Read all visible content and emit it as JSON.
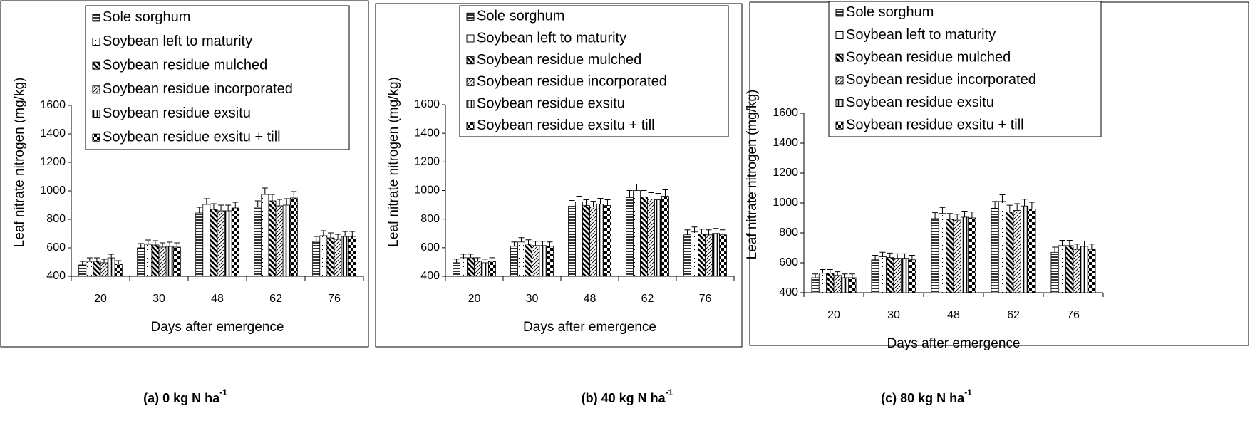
{
  "chart_data": [
    {
      "type": "bar",
      "ylabel": "Leaf nitrate nitrogen  (mg/kg)",
      "xlabel": "Days after emergence",
      "categories": [
        "20",
        "30",
        "48",
        "62",
        "76"
      ],
      "ylim": [
        400,
        1600
      ],
      "yticks": [
        400,
        600,
        800,
        1000,
        1200,
        1400,
        1600
      ],
      "series": [
        {
          "name": "Sole sorghum",
          "color": "#000000",
          "pattern": "horizontal",
          "values": [
            480,
            600,
            845,
            885,
            645
          ],
          "errors": [
            25,
            30,
            40,
            45,
            35
          ]
        },
        {
          "name": "Soybean left to maturity",
          "color": "#000000",
          "pattern": "dotted",
          "values": [
            505,
            625,
            905,
            975,
            685
          ],
          "errors": [
            25,
            30,
            40,
            45,
            35
          ]
        },
        {
          "name": "Soybean residue mulched",
          "color": "#000000",
          "pattern": "diag-thick",
          "values": [
            505,
            620,
            870,
            930,
            670
          ],
          "errors": [
            25,
            30,
            40,
            45,
            35
          ]
        },
        {
          "name": "Soybean residue incorporated",
          "color": "#000000",
          "pattern": "diag-thin",
          "values": [
            495,
            605,
            860,
            895,
            660
          ],
          "errors": [
            25,
            30,
            40,
            45,
            35
          ]
        },
        {
          "name": "Soybean residue exsitu",
          "color": "#000000",
          "pattern": "vertical",
          "values": [
            530,
            610,
            860,
            900,
            680
          ],
          "errors": [
            25,
            30,
            40,
            45,
            35
          ]
        },
        {
          "name": "Soybean residue exsitu + till",
          "color": "#000000",
          "pattern": "checker",
          "values": [
            485,
            605,
            880,
            950,
            680
          ],
          "errors": [
            25,
            30,
            40,
            45,
            35
          ]
        }
      ]
    },
    {
      "type": "bar",
      "ylabel": "Leaf nitrate nitrogen  (mg/kg)",
      "xlabel": "Days after emergence",
      "categories": [
        "20",
        "30",
        "48",
        "62",
        "76"
      ],
      "ylim": [
        400,
        1600
      ],
      "yticks": [
        400,
        600,
        800,
        1000,
        1200,
        1400,
        1600
      ],
      "series": [
        {
          "name": "Sole sorghum",
          "color": "#000000",
          "pattern": "horizontal",
          "values": [
            495,
            610,
            890,
            955,
            690
          ],
          "errors": [
            25,
            30,
            40,
            45,
            35
          ]
        },
        {
          "name": "Soybean left to maturity",
          "color": "#000000",
          "pattern": "dotted",
          "values": [
            530,
            640,
            920,
            1000,
            710
          ],
          "errors": [
            25,
            30,
            40,
            45,
            35
          ]
        },
        {
          "name": "Soybean residue mulched",
          "color": "#000000",
          "pattern": "diag-thick",
          "values": [
            530,
            625,
            895,
            955,
            695
          ],
          "errors": [
            25,
            30,
            40,
            45,
            35
          ]
        },
        {
          "name": "Soybean residue incorporated",
          "color": "#000000",
          "pattern": "diag-thin",
          "values": [
            505,
            615,
            885,
            940,
            690
          ],
          "errors": [
            25,
            30,
            40,
            45,
            35
          ]
        },
        {
          "name": "Soybean residue exsitu",
          "color": "#000000",
          "pattern": "vertical",
          "values": [
            495,
            615,
            905,
            935,
            700
          ],
          "errors": [
            25,
            30,
            40,
            45,
            35
          ]
        },
        {
          "name": "Soybean residue exsitu + till",
          "color": "#000000",
          "pattern": "checker",
          "values": [
            505,
            610,
            895,
            960,
            690
          ],
          "errors": [
            25,
            30,
            40,
            45,
            35
          ]
        }
      ]
    },
    {
      "type": "bar",
      "ylabel": "Leaf nitrate nitrogen  (mg/kg)",
      "xlabel": "Days after emergence",
      "categories": [
        "20",
        "30",
        "48",
        "62",
        "76"
      ],
      "ylim": [
        400,
        1600
      ],
      "yticks": [
        400,
        600,
        800,
        1000,
        1200,
        1400,
        1600
      ],
      "series": [
        {
          "name": "Sole sorghum",
          "color": "#000000",
          "pattern": "horizontal",
          "values": [
            500,
            620,
            895,
            965,
            670
          ],
          "errors": [
            25,
            30,
            40,
            45,
            35
          ]
        },
        {
          "name": "Soybean left to maturity",
          "color": "#000000",
          "pattern": "dotted",
          "values": [
            530,
            640,
            930,
            1010,
            715
          ],
          "errors": [
            25,
            30,
            40,
            45,
            35
          ]
        },
        {
          "name": "Soybean residue mulched",
          "color": "#000000",
          "pattern": "diag-thick",
          "values": [
            530,
            635,
            890,
            940,
            715
          ],
          "errors": [
            25,
            30,
            40,
            45,
            35
          ]
        },
        {
          "name": "Soybean residue incorporated",
          "color": "#000000",
          "pattern": "diag-thin",
          "values": [
            515,
            630,
            885,
            950,
            690
          ],
          "errors": [
            25,
            30,
            40,
            45,
            35
          ]
        },
        {
          "name": "Soybean residue exsitu",
          "color": "#000000",
          "pattern": "vertical",
          "values": [
            500,
            630,
            905,
            980,
            710
          ],
          "errors": [
            25,
            30,
            40,
            45,
            35
          ]
        },
        {
          "name": "Soybean residue exsitu + till",
          "color": "#000000",
          "pattern": "checker",
          "values": [
            500,
            620,
            900,
            960,
            690
          ],
          "errors": [
            25,
            30,
            40,
            45,
            35
          ]
        }
      ]
    }
  ],
  "captions": [
    {
      "text": "(a)  0 kg N ha",
      "sup": "-1"
    },
    {
      "text": "(b) 40 kg N ha",
      "sup": "-1"
    },
    {
      "text": "(c) 80 kg N ha",
      "sup": "-1"
    }
  ]
}
